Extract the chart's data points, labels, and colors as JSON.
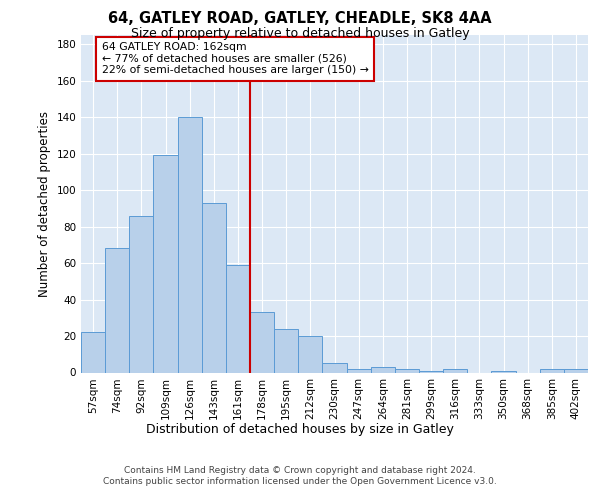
{
  "title1": "64, GATLEY ROAD, GATLEY, CHEADLE, SK8 4AA",
  "title2": "Size of property relative to detached houses in Gatley",
  "xlabel": "Distribution of detached houses by size in Gatley",
  "ylabel": "Number of detached properties",
  "categories": [
    "57sqm",
    "74sqm",
    "92sqm",
    "109sqm",
    "126sqm",
    "143sqm",
    "161sqm",
    "178sqm",
    "195sqm",
    "212sqm",
    "230sqm",
    "247sqm",
    "264sqm",
    "281sqm",
    "299sqm",
    "316sqm",
    "333sqm",
    "350sqm",
    "368sqm",
    "385sqm",
    "402sqm"
  ],
  "values": [
    22,
    68,
    86,
    119,
    140,
    93,
    59,
    33,
    24,
    20,
    5,
    2,
    3,
    2,
    1,
    2,
    0,
    1,
    0,
    2,
    2
  ],
  "bar_color": "#b8d0ea",
  "bar_edge_color": "#5b9bd5",
  "vline_color": "#cc0000",
  "annotation_text": "64 GATLEY ROAD: 162sqm\n← 77% of detached houses are smaller (526)\n22% of semi-detached houses are larger (150) →",
  "annotation_box_color": "#ffffff",
  "annotation_box_edge": "#cc0000",
  "ylim": [
    0,
    185
  ],
  "yticks": [
    0,
    20,
    40,
    60,
    80,
    100,
    120,
    140,
    160,
    180
  ],
  "footer1": "Contains HM Land Registry data © Crown copyright and database right 2024.",
  "footer2": "Contains public sector information licensed under the Open Government Licence v3.0.",
  "bg_color": "#dce8f5"
}
